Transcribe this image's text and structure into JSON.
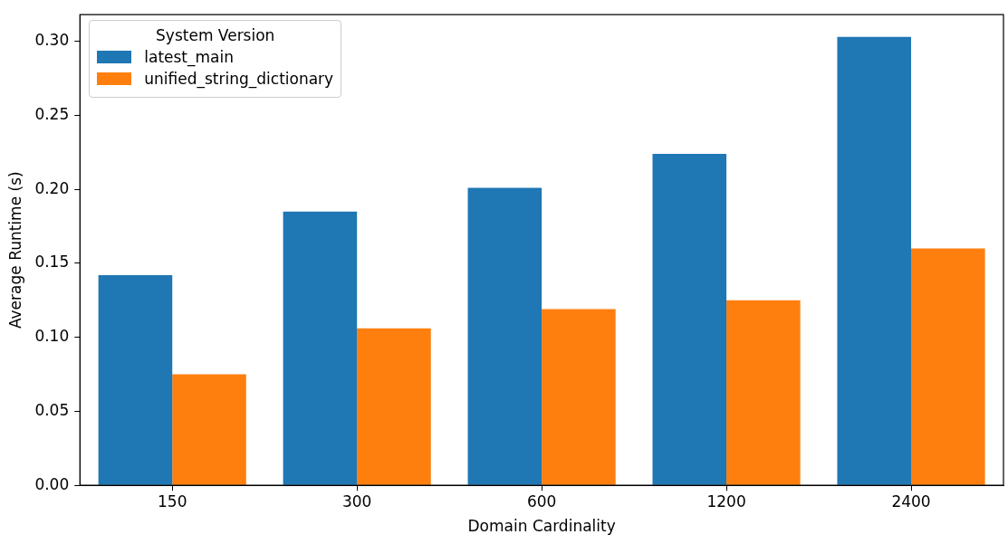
{
  "chart_data": {
    "type": "bar",
    "xlabel": "Domain Cardinality",
    "ylabel": "Average Runtime (s)",
    "legend_title": "System Version",
    "categories": [
      "150",
      "300",
      "600",
      "1200",
      "2400"
    ],
    "series": [
      {
        "name": "latest_main",
        "color": "#1f77b4",
        "values": [
          0.142,
          0.185,
          0.201,
          0.224,
          0.303
        ]
      },
      {
        "name": "unified_string_dictionary",
        "color": "#ff7f0e",
        "values": [
          0.075,
          0.106,
          0.119,
          0.125,
          0.16
        ]
      }
    ],
    "ylim": [
      0,
      0.318
    ],
    "yticks": [
      {
        "value": 0,
        "label": "0.00"
      },
      {
        "value": 0.05,
        "label": "0.05"
      },
      {
        "value": 0.1,
        "label": "0.10"
      },
      {
        "value": 0.15,
        "label": "0.15"
      },
      {
        "value": 0.2,
        "label": "0.20"
      },
      {
        "value": 0.25,
        "label": "0.25"
      },
      {
        "value": 0.3,
        "label": "0.30"
      }
    ],
    "grid": false,
    "legend": "top left"
  }
}
